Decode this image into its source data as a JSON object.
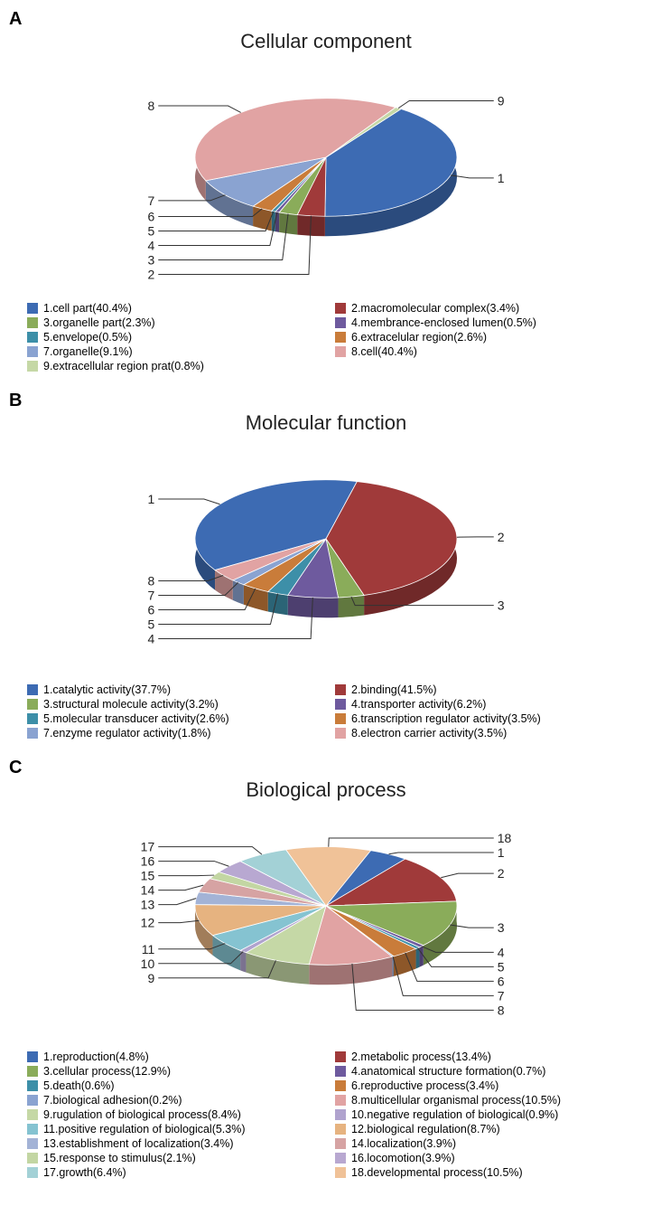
{
  "panels": [
    {
      "id": "A",
      "title": "Cellular component",
      "type": "pie-3d",
      "tilt": 0.45,
      "depth": 22,
      "radius": 145,
      "title_fontsize": 22,
      "label_fontsize": 14,
      "legend_fontsize": 12.5,
      "background_color": "#ffffff",
      "slices": [
        {
          "n": 1,
          "label": "cell part",
          "pct": 40.4,
          "color": "#3d6bb3"
        },
        {
          "n": 2,
          "label": "macromolecular complex",
          "pct": 3.4,
          "color": "#a03a3a"
        },
        {
          "n": 3,
          "label": "organelle part",
          "pct": 2.3,
          "color": "#8aac5a"
        },
        {
          "n": 4,
          "label": "membrance-enclosed lumen",
          "pct": 0.5,
          "color": "#6e5a9e"
        },
        {
          "n": 5,
          "label": "envelope",
          "pct": 0.5,
          "color": "#3d8fa8"
        },
        {
          "n": 6,
          "label": "extracelular region",
          "pct": 2.6,
          "color": "#c97c3a"
        },
        {
          "n": 7,
          "label": "organelle",
          "pct": 9.1,
          "color": "#8aa3d1"
        },
        {
          "n": 8,
          "label": "cell",
          "pct": 40.4,
          "color": "#e1a3a3"
        },
        {
          "n": 9,
          "label": "extracellular region prat",
          "pct": 0.8,
          "color": "#c5d8a6"
        }
      ]
    },
    {
      "id": "B",
      "title": "Molecular function",
      "type": "pie-3d",
      "tilt": 0.45,
      "depth": 22,
      "radius": 145,
      "title_fontsize": 22,
      "label_fontsize": 14,
      "legend_fontsize": 12.5,
      "background_color": "#ffffff",
      "slices": [
        {
          "n": 1,
          "label": "catalytic activity",
          "pct": 37.7,
          "color": "#3d6bb3"
        },
        {
          "n": 2,
          "label": "binding",
          "pct": 41.5,
          "color": "#a03a3a"
        },
        {
          "n": 3,
          "label": "structural molecule activity",
          "pct": 3.2,
          "color": "#8aac5a"
        },
        {
          "n": 4,
          "label": "transporter activity",
          "pct": 6.2,
          "color": "#6e5a9e"
        },
        {
          "n": 5,
          "label": "molecular transducer activity",
          "pct": 2.6,
          "color": "#3d8fa8"
        },
        {
          "n": 6,
          "label": "transcription regulator activity",
          "pct": 3.5,
          "color": "#c97c3a"
        },
        {
          "n": 7,
          "label": "enzyme regulator activity",
          "pct": 1.8,
          "color": "#8aa3d1"
        },
        {
          "n": 8,
          "label": "electron carrier activity",
          "pct": 3.5,
          "color": "#e1a3a3"
        }
      ]
    },
    {
      "id": "C",
      "title": "Biological process",
      "type": "pie-3d",
      "tilt": 0.45,
      "depth": 22,
      "radius": 145,
      "title_fontsize": 22,
      "label_fontsize": 14,
      "legend_fontsize": 12.5,
      "background_color": "#ffffff",
      "slices": [
        {
          "n": 1,
          "label": "reproduction",
          "pct": 4.8,
          "color": "#3d6bb3"
        },
        {
          "n": 2,
          "label": "metabolic process",
          "pct": 13.4,
          "color": "#a03a3a"
        },
        {
          "n": 3,
          "label": "cellular process",
          "pct": 12.9,
          "color": "#8aac5a"
        },
        {
          "n": 4,
          "label": "anatomical structure formation",
          "pct": 0.7,
          "color": "#6e5a9e"
        },
        {
          "n": 5,
          "label": "death",
          "pct": 0.6,
          "color": "#3d8fa8"
        },
        {
          "n": 6,
          "label": "reproductive process",
          "pct": 3.4,
          "color": "#c97c3a"
        },
        {
          "n": 7,
          "label": "biological adhesion",
          "pct": 0.2,
          "color": "#8aa3d1"
        },
        {
          "n": 8,
          "label": "multicellular organismal process",
          "pct": 10.5,
          "color": "#e1a3a3"
        },
        {
          "n": 9,
          "label": "rugulation of biological process",
          "pct": 8.4,
          "color": "#c5d8a6"
        },
        {
          "n": 10,
          "label": "negative regulation of biological",
          "pct": 0.9,
          "color": "#b0a3ce"
        },
        {
          "n": 11,
          "label": "positive regulation of biological",
          "pct": 5.3,
          "color": "#85c3d1"
        },
        {
          "n": 12,
          "label": "biological regulation",
          "pct": 8.7,
          "color": "#e6b380"
        },
        {
          "n": 13,
          "label": "establishment of localization",
          "pct": 3.4,
          "color": "#a3b3d6"
        },
        {
          "n": 14,
          "label": "localization",
          "pct": 3.9,
          "color": "#d6a3a3"
        },
        {
          "n": 15,
          "label": "response to stimulus",
          "pct": 2.1,
          "color": "#c3d6a3"
        },
        {
          "n": 16,
          "label": "locomotion",
          "pct": 3.9,
          "color": "#b8a8d1"
        },
        {
          "n": 17,
          "label": "growth",
          "pct": 6.4,
          "color": "#a3d1d6"
        },
        {
          "n": 18,
          "label": "developmental process",
          "pct": 10.5,
          "color": "#f0c298"
        }
      ]
    }
  ]
}
